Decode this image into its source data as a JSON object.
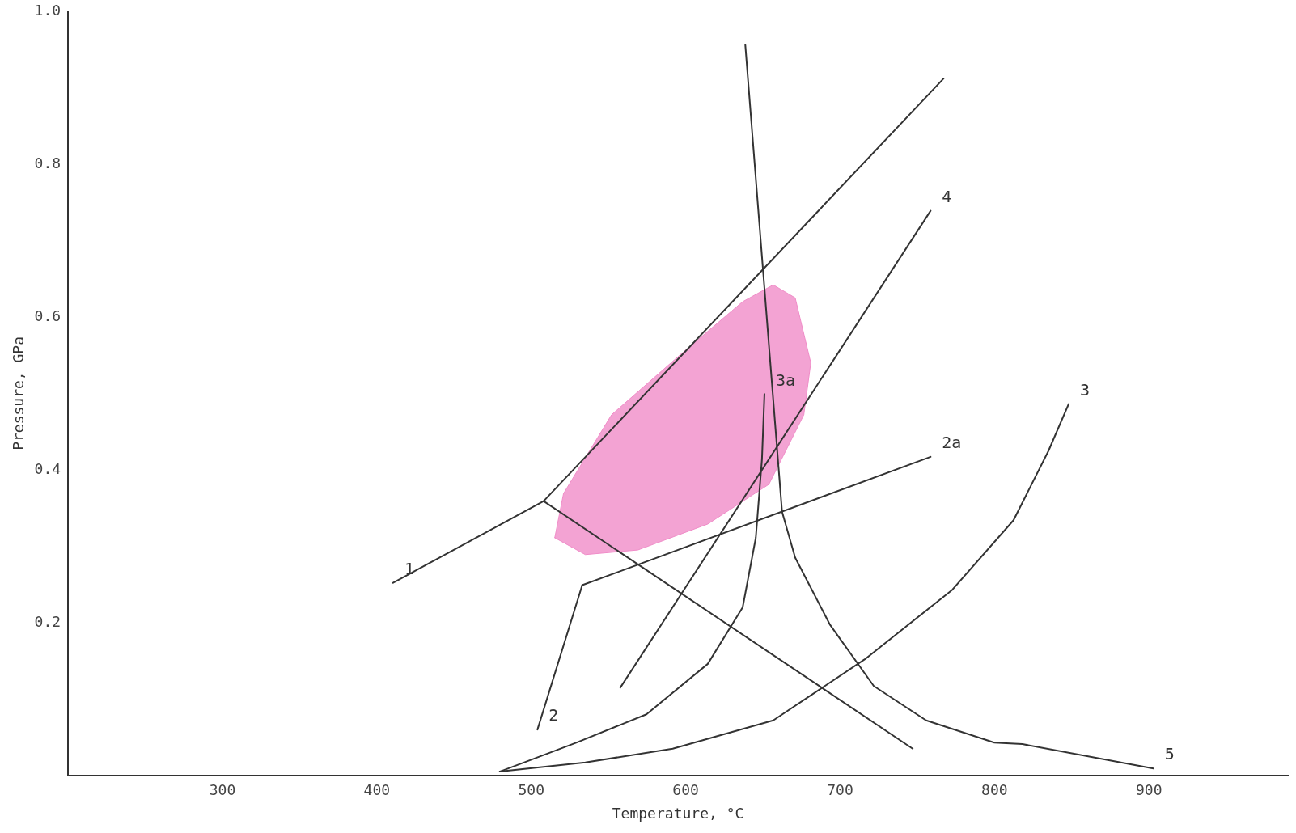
{
  "chart_data": {
    "type": "line",
    "xlabel": "Temperature, °C",
    "ylabel": "Pressure, GPa",
    "xlim": [
      200,
      990
    ],
    "xticks": [
      300,
      400,
      500,
      600,
      700,
      800,
      900
    ],
    "ylim": [
      0,
      1.0
    ],
    "yticks": [
      0.2,
      0.4,
      0.6,
      0.8,
      {
        "value": 1.0,
        "label": "1.0"
      }
    ],
    "grid": false,
    "legend": false,
    "marker": "none",
    "line_style": "solid",
    "series": [
      {
        "type": "area",
        "color": "#f08cc8",
        "x": [
          515.2,
          520.9,
          552,
          597.3,
          636.9,
          656.7,
          670.9,
          681,
          676.5,
          653.9,
          614.3,
          569,
          535,
          515.2
        ],
        "values": [
          0.311,
          0.369,
          0.472,
          0.552,
          0.62,
          0.642,
          0.625,
          0.54,
          0.472,
          0.381,
          0.329,
          0.295,
          0.289,
          0.311
        ]
      },
      {
        "name": "1",
        "type": "line",
        "color": "#333333",
        "x": [
          767,
          508,
          410.5
        ],
        "values": [
          0.912,
          0.359,
          0.252
        ]
      },
      {
        "type": "line",
        "color": "#333333",
        "x": [
          508,
          747
        ],
        "values": [
          0.359,
          0.035
        ]
      },
      {
        "name": "2",
        "type": "line",
        "color": "#333333",
        "x": [
          533,
          504
        ],
        "values": [
          0.249,
          0.06
        ]
      },
      {
        "name": "2a",
        "type": "line",
        "color": "#333333",
        "x": [
          533,
          758.6
        ],
        "values": [
          0.249,
          0.417
        ]
      },
      {
        "name": "4",
        "type": "line",
        "color": "#333333",
        "x": [
          557.7,
          758.6
        ],
        "values": [
          0.115,
          0.739
        ]
      },
      {
        "name": "3",
        "type": "line",
        "color": "#333333",
        "x": [
          479.6,
          535,
          591.6,
          656.7,
          716,
          772.7,
          812.3,
          835,
          848
        ],
        "values": [
          0.005,
          0.017,
          0.035,
          0.072,
          0.152,
          0.243,
          0.334,
          0.425,
          0.486
        ]
      },
      {
        "name": "3a",
        "type": "line",
        "color": "#333333",
        "x": [
          479.6,
          529.4,
          574.6,
          614.3,
          636.9,
          645.4,
          649.4,
          651
        ],
        "values": [
          0.005,
          0.043,
          0.08,
          0.146,
          0.22,
          0.311,
          0.414,
          0.499
        ]
      },
      {
        "name": "5",
        "type": "line",
        "color": "#333333",
        "x": [
          638.6,
          662.4,
          670.9,
          693.5,
          721.8,
          755.7,
          799.9,
          818,
          902.9
        ],
        "values": [
          0.956,
          0.345,
          0.285,
          0.197,
          0.117,
          0.072,
          0.043,
          0.041,
          0.009
        ]
      }
    ]
  }
}
